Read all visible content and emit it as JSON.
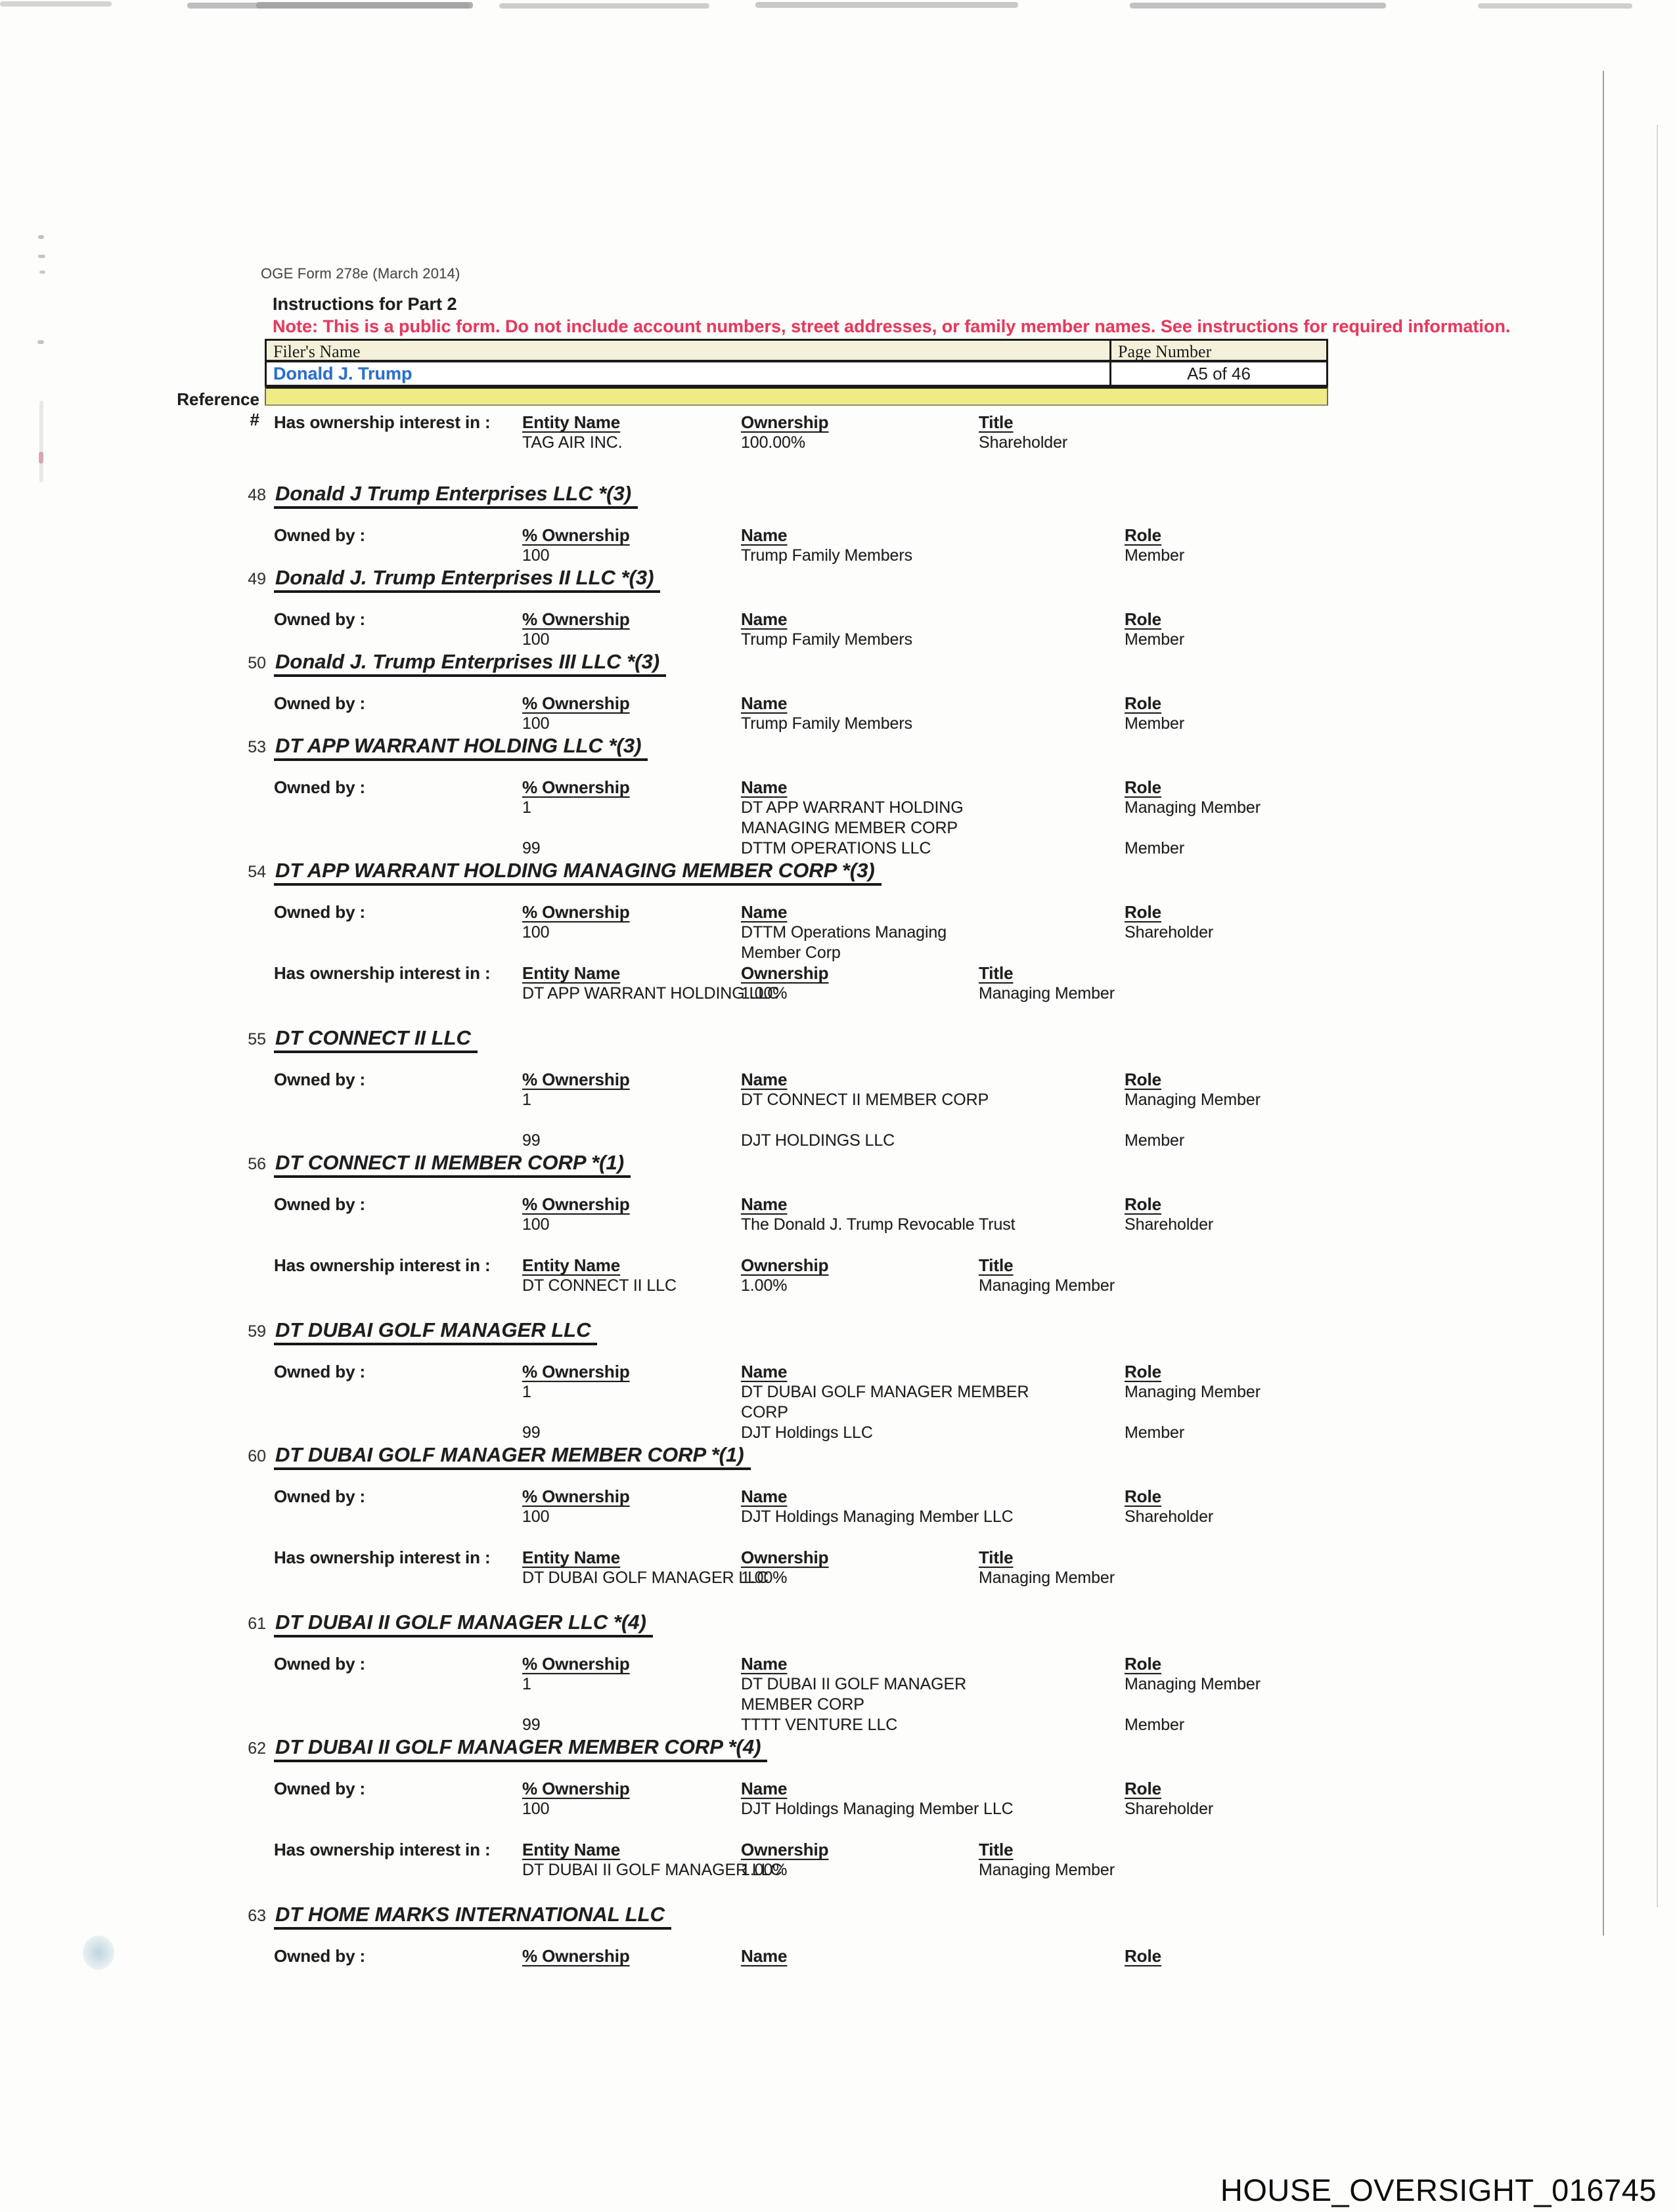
{
  "page": {
    "form_code": "OGE Form 278e (March 2014)",
    "instructions_title": "Instructions for Part 2",
    "note": "Note: This is a public form. Do not include account numbers, street addresses, or family member names.  See instructions for required information.",
    "watermark": "HOUSE_OVERSIGHT_016745"
  },
  "colors": {
    "note_red": "#e43a5f",
    "filer_blue": "#2a6fc9",
    "band_yellow": "#efec85",
    "cream": "#f4f0da"
  },
  "filer_table": {
    "name_label": "Filer's Name",
    "page_label": "Page Number",
    "name_value": "Donald J. Trump",
    "page_value": "A5 of 46",
    "reference_label": "Reference #"
  },
  "labels": {
    "owned_by": "Owned by :",
    "has_ownership": "Has ownership interest in :",
    "pct_ownership": "% Ownership",
    "name": "Name",
    "role": "Role",
    "entity_name": "Entity Name",
    "ownership": "Ownership",
    "title": "Title"
  },
  "intro_interest": {
    "entity": "TAG AIR INC.",
    "ownership": "100.00%",
    "title": "Shareholder"
  },
  "entities": [
    {
      "num": "48",
      "title": "Donald J Trump Enterprises LLC *(3)",
      "owned_by": [
        {
          "pct": "100",
          "name": "Trump Family Members",
          "role": "Member"
        }
      ]
    },
    {
      "num": "49",
      "title": "Donald J. Trump Enterprises II LLC *(3)",
      "owned_by": [
        {
          "pct": "100",
          "name": "Trump Family Members",
          "role": "Member"
        }
      ]
    },
    {
      "num": "50",
      "title": "Donald J. Trump Enterprises III LLC *(3)",
      "owned_by": [
        {
          "pct": "100",
          "name": "Trump Family Members",
          "role": "Member"
        }
      ]
    },
    {
      "num": "53",
      "title": "DT APP WARRANT HOLDING LLC *(3)",
      "owned_by": [
        {
          "pct": "1",
          "name": "DT APP WARRANT HOLDING\nMANAGING MEMBER CORP",
          "role": "Managing Member"
        },
        {
          "pct": "99",
          "name": "DTTM OPERATIONS LLC",
          "role": "Member"
        }
      ]
    },
    {
      "num": "54",
      "title": "DT APP WARRANT HOLDING MANAGING MEMBER CORP *(3)",
      "owned_by": [
        {
          "pct": "100",
          "name": "DTTM Operations Managing\nMember Corp",
          "role": "Shareholder"
        }
      ],
      "interest": {
        "entity": "DT APP WARRANT HOLDING LLC",
        "ownership": "1.00%",
        "title": "Managing Member"
      }
    },
    {
      "num": "55",
      "title": "DT CONNECT II LLC",
      "owned_by": [
        {
          "pct": "1",
          "name": "DT CONNECT II MEMBER CORP",
          "role": "Managing Member"
        },
        {
          "pct": "99",
          "name": "DJT HOLDINGS LLC",
          "role": "Member"
        }
      ]
    },
    {
      "num": "56",
      "title": "DT CONNECT II MEMBER CORP *(1)",
      "owned_by": [
        {
          "pct": "100",
          "name": "The Donald J. Trump Revocable Trust",
          "role": "Shareholder"
        }
      ],
      "interest": {
        "entity": "DT CONNECT II LLC",
        "ownership": "1.00%",
        "title": "Managing Member"
      }
    },
    {
      "num": "59",
      "title": "DT DUBAI GOLF MANAGER LLC",
      "owned_by": [
        {
          "pct": "1",
          "name": "DT DUBAI GOLF MANAGER MEMBER\nCORP",
          "role": "Managing Member"
        },
        {
          "pct": "99",
          "name": "DJT Holdings LLC",
          "role": "Member"
        }
      ]
    },
    {
      "num": "60",
      "title": "DT DUBAI GOLF MANAGER MEMBER CORP *(1)",
      "owned_by": [
        {
          "pct": "100",
          "name": "DJT Holdings Managing Member LLC",
          "role": "Shareholder"
        }
      ],
      "interest": {
        "entity": "DT DUBAI GOLF MANAGER LLC",
        "ownership": "1.00%",
        "title": "Managing Member"
      }
    },
    {
      "num": "61",
      "title": "DT DUBAI II GOLF MANAGER LLC *(4)",
      "owned_by": [
        {
          "pct": "1",
          "name": "DT DUBAI II GOLF MANAGER\nMEMBER CORP",
          "role": "Managing Member"
        },
        {
          "pct": "99",
          "name": "TTTT VENTURE LLC",
          "role": "Member"
        }
      ]
    },
    {
      "num": "62",
      "title": "DT DUBAI II GOLF MANAGER MEMBER CORP *(4)",
      "owned_by": [
        {
          "pct": "100",
          "name": "DJT Holdings Managing Member LLC",
          "role": "Shareholder"
        }
      ],
      "interest": {
        "entity": "DT DUBAI II GOLF MANAGER LLC",
        "ownership": "1.00%",
        "title": "Managing Member"
      }
    },
    {
      "num": "63",
      "title": "DT HOME MARKS INTERNATIONAL LLC",
      "owned_by": []
    }
  ]
}
